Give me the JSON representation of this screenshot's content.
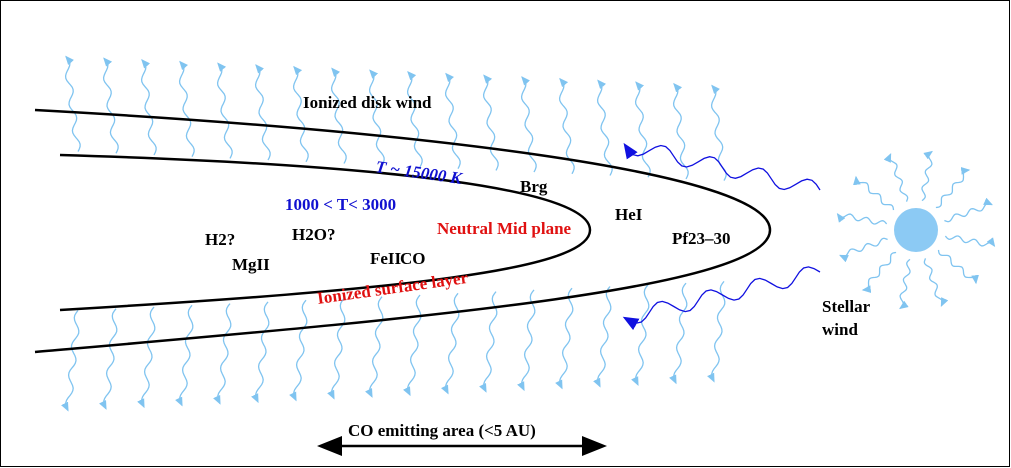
{
  "labels": {
    "disk_wind": "Ionized disk wind",
    "hot_temp": "T ~ 15000 K",
    "brg": "Brg",
    "warm_temp": "1000 < T< 3000",
    "hei": "HeI",
    "h2": "H2?",
    "h2o": "H2O?",
    "mid_plane": "Neutral Mid plane",
    "pf": "Pf23–30",
    "mgii": "MgII",
    "feii": "FeII",
    "co": "CO",
    "surface_layer": "Ionized surface layer",
    "stellar_wind": [
      "Stellar",
      "wind"
    ],
    "co_area": "CO emitting area (<5 AU)"
  }
}
